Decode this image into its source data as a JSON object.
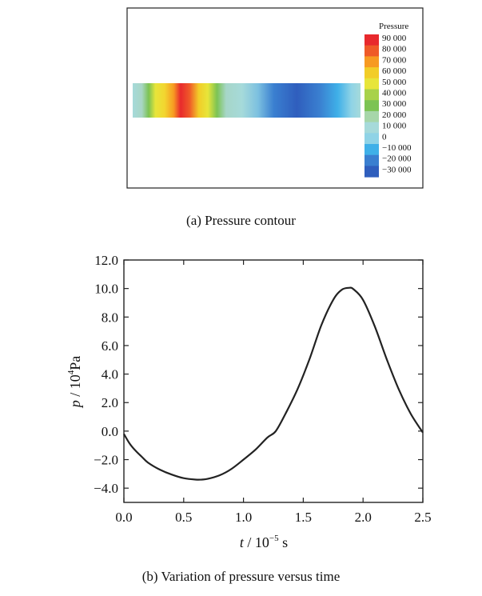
{
  "panel_a": {
    "caption": "(a) Pressure contour",
    "legend_title": "Pressure",
    "legend_labels": [
      "90 000",
      "80 000",
      "70 000",
      "60 000",
      "50 000",
      "40 000",
      "30 000",
      "20 000",
      "10 000",
      "0",
      "−10 000",
      "−20 000",
      "−30 000"
    ],
    "legend_values": [
      90000,
      80000,
      70000,
      60000,
      50000,
      40000,
      30000,
      20000,
      10000,
      0,
      -10000,
      -20000,
      -30000
    ],
    "legend_colors": [
      "#e8292d",
      "#ef5a28",
      "#f79a22",
      "#f2cd28",
      "#e7e53a",
      "#a8d24a",
      "#7cc354",
      "#a6d6a9",
      "#a6dada",
      "#8fd3e6",
      "#3fb0e8",
      "#3a7fd0",
      "#2f5ebd"
    ]
  },
  "panel_b": {
    "caption": "(b) Variation of pressure versus time"
  },
  "chart_data": {
    "type": "line",
    "xlabel_var": "t",
    "xlabel_unit": " / 10",
    "xlabel_exp": "−5",
    "xlabel_tail": " s",
    "ylabel_var": "p",
    "ylabel_unit": " / 10",
    "ylabel_exp": "4",
    "ylabel_tail": "Pa",
    "xlim": [
      0,
      2.5
    ],
    "ylim": [
      -5,
      12
    ],
    "xticks": [
      0.0,
      0.5,
      1.0,
      1.5,
      2.0,
      2.5
    ],
    "xtick_labels": [
      "0.0",
      "0.5",
      "1.0",
      "1.5",
      "2.0",
      "2.5"
    ],
    "yticks": [
      -4,
      -2,
      0,
      2,
      4,
      6,
      8,
      10,
      12
    ],
    "ytick_labels": [
      "−4.0",
      "−2.0",
      "0.0",
      "2.0",
      "4.0",
      "6.0",
      "8.0",
      "10.0",
      "12.0"
    ],
    "grid": false,
    "series": [
      {
        "x": [
          0.0,
          0.05,
          0.1,
          0.15,
          0.2,
          0.3,
          0.4,
          0.5,
          0.6,
          0.65,
          0.7,
          0.8,
          0.9,
          1.0,
          1.1,
          1.2,
          1.27,
          1.35,
          1.45,
          1.55,
          1.65,
          1.75,
          1.82,
          1.88,
          1.92,
          2.0,
          2.1,
          2.2,
          2.3,
          2.4,
          2.5
        ],
        "y": [
          -0.2,
          -0.9,
          -1.4,
          -1.8,
          -2.2,
          -2.7,
          -3.05,
          -3.3,
          -3.4,
          -3.4,
          -3.35,
          -3.1,
          -2.65,
          -2.0,
          -1.3,
          -0.45,
          0.0,
          1.2,
          2.9,
          5.0,
          7.4,
          9.2,
          9.9,
          10.05,
          9.95,
          9.2,
          7.3,
          5.0,
          2.9,
          1.2,
          -0.1
        ]
      }
    ]
  }
}
